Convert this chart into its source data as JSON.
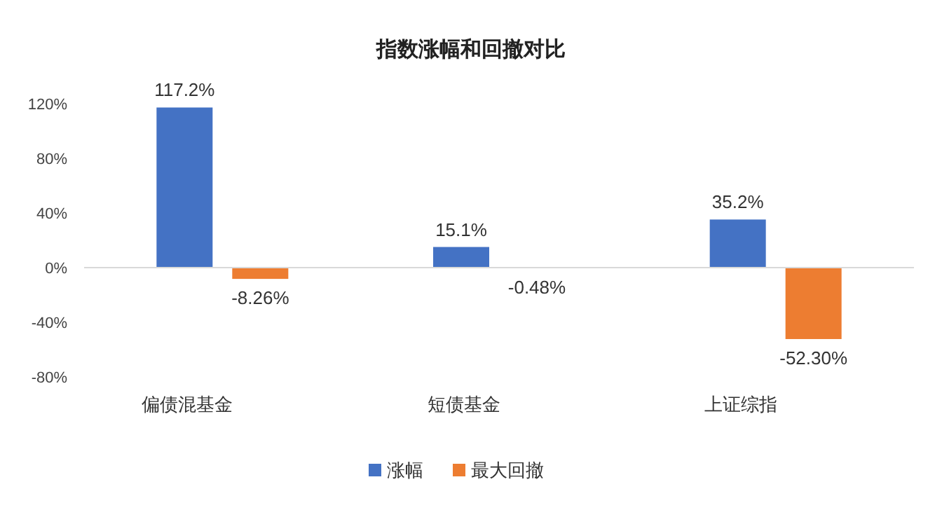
{
  "chart_data": {
    "type": "bar",
    "title": "指数涨幅和回撤对比",
    "categories": [
      "偏债混基金",
      "短债基金",
      "上证综指"
    ],
    "series": [
      {
        "name": "涨幅",
        "color": "#4472c4",
        "values": [
          117.2,
          15.1,
          35.2
        ],
        "value_labels": [
          "117.2%",
          "15.1%",
          "35.2%"
        ]
      },
      {
        "name": "最大回撤",
        "color": "#ed7d31",
        "values": [
          -8.26,
          -0.48,
          -52.3
        ],
        "value_labels": [
          "-8.26%",
          "-0.48%",
          "-52.30%"
        ]
      }
    ],
    "ylim": [
      -80,
      120
    ],
    "yticks": [
      {
        "value": -80,
        "label": "-80%"
      },
      {
        "value": -40,
        "label": "-40%"
      },
      {
        "value": 0,
        "label": "0%"
      },
      {
        "value": 40,
        "label": "40%"
      },
      {
        "value": 80,
        "label": "80%"
      },
      {
        "value": 120,
        "label": "120%"
      }
    ],
    "legend": "bottom"
  }
}
